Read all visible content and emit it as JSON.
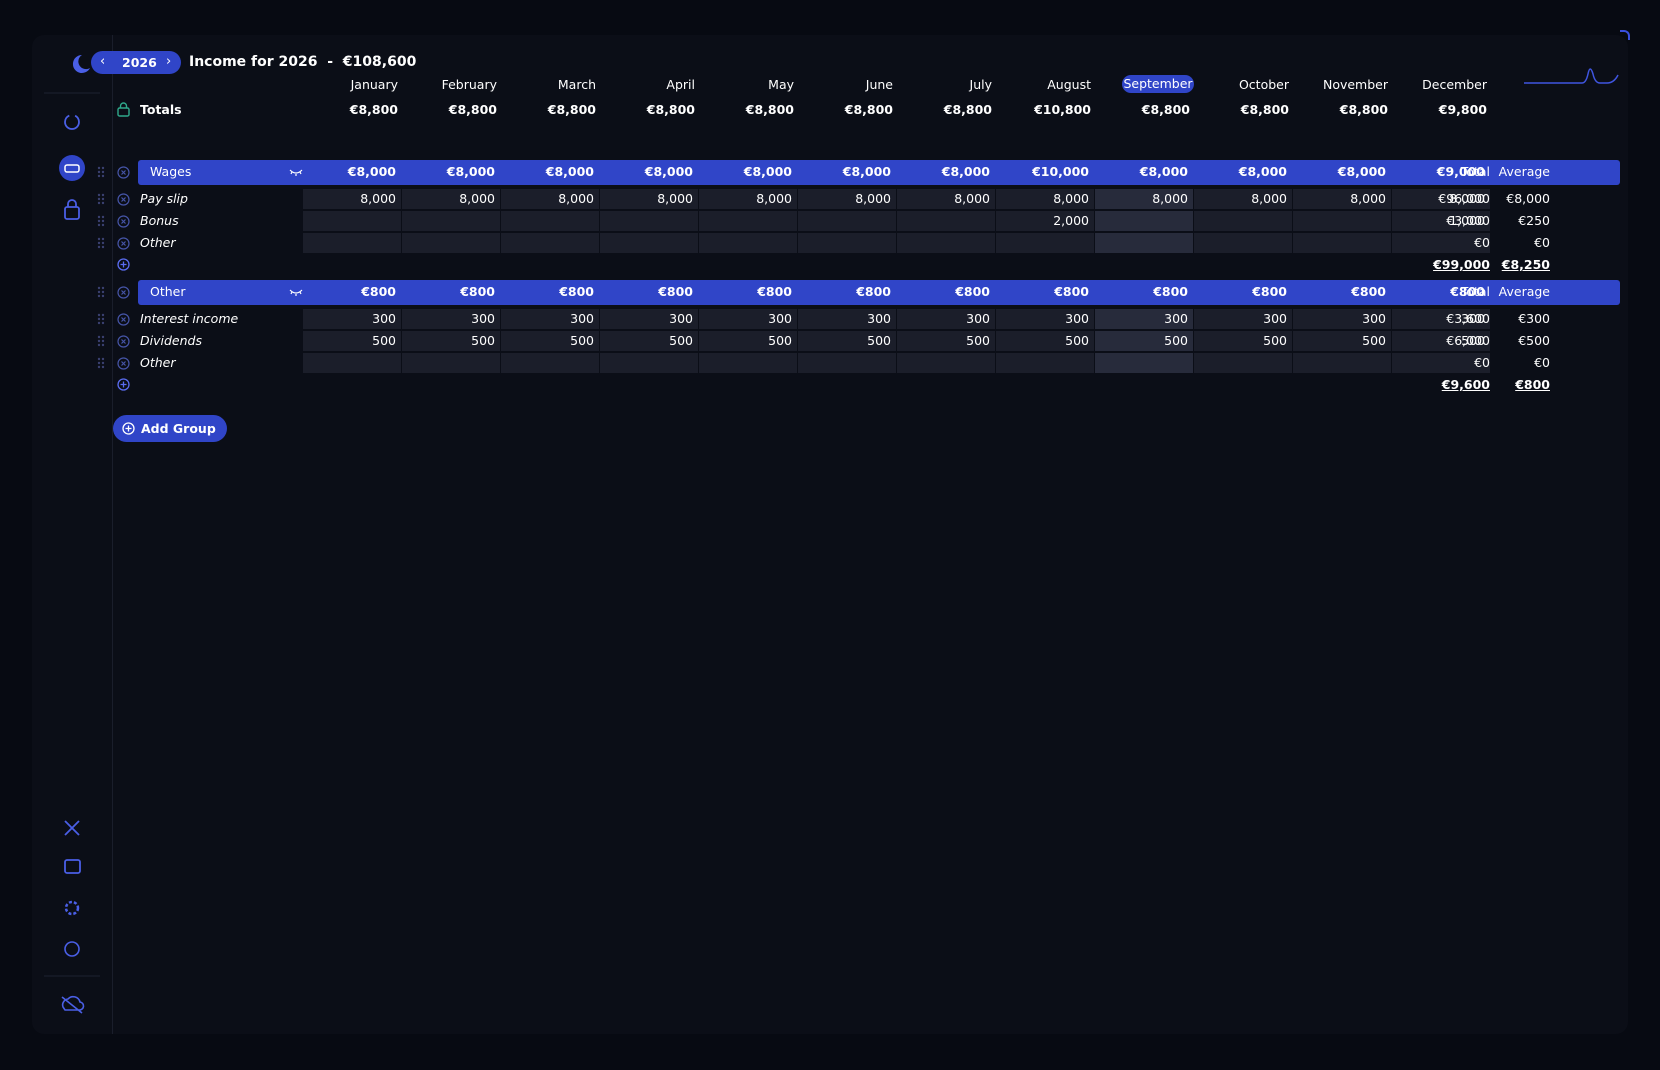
{
  "header": {
    "year": "2026",
    "title": "Income for 2026  -  €108,600"
  },
  "months": [
    "January",
    "February",
    "March",
    "April",
    "May",
    "June",
    "July",
    "August",
    "September",
    "October",
    "November",
    "December"
  ],
  "current_month_index": 8,
  "totals": {
    "label": "Totals",
    "values": [
      "€8,800",
      "€8,800",
      "€8,800",
      "€8,800",
      "€8,800",
      "€8,800",
      "€8,800",
      "€10,800",
      "€8,800",
      "€8,800",
      "€8,800",
      "€9,800"
    ]
  },
  "groups": [
    {
      "name": "Wages",
      "month_totals": [
        "€8,000",
        "€8,000",
        "€8,000",
        "€8,000",
        "€8,000",
        "€8,000",
        "€8,000",
        "€10,000",
        "€8,000",
        "€8,000",
        "€8,000",
        "€9,000"
      ],
      "total_label": "Total",
      "average_label": "Average",
      "rows": [
        {
          "name": "Pay slip",
          "cells": [
            "8,000",
            "8,000",
            "8,000",
            "8,000",
            "8,000",
            "8,000",
            "8,000",
            "8,000",
            "8,000",
            "8,000",
            "8,000",
            "8,000"
          ],
          "total": "€96,000",
          "average": "€8,000"
        },
        {
          "name": "Bonus",
          "cells": [
            null,
            null,
            null,
            null,
            null,
            null,
            null,
            "2,000",
            null,
            null,
            null,
            "1,000"
          ],
          "total": "€3,000",
          "average": "€250"
        },
        {
          "name": "Other",
          "cells": [
            null,
            null,
            null,
            null,
            null,
            null,
            null,
            null,
            null,
            null,
            null,
            null
          ],
          "total": "€0",
          "average": "€0"
        }
      ],
      "sum_total": "€99,000",
      "sum_average": "€8,250"
    },
    {
      "name": "Other",
      "month_totals": [
        "€800",
        "€800",
        "€800",
        "€800",
        "€800",
        "€800",
        "€800",
        "€800",
        "€800",
        "€800",
        "€800",
        "€800"
      ],
      "total_label": "Total",
      "average_label": "Average",
      "rows": [
        {
          "name": "Interest income",
          "cells": [
            "300",
            "300",
            "300",
            "300",
            "300",
            "300",
            "300",
            "300",
            "300",
            "300",
            "300",
            "300"
          ],
          "total": "€3,600",
          "average": "€300"
        },
        {
          "name": "Dividends",
          "cells": [
            "500",
            "500",
            "500",
            "500",
            "500",
            "500",
            "500",
            "500",
            "500",
            "500",
            "500",
            "500"
          ],
          "total": "€6,000",
          "average": "€500"
        },
        {
          "name": "Other",
          "cells": [
            null,
            null,
            null,
            null,
            null,
            null,
            null,
            null,
            null,
            null,
            null,
            null
          ],
          "total": "€0",
          "average": "€0"
        }
      ],
      "sum_total": "€9,600",
      "sum_average": "€800"
    }
  ],
  "add_group": "Add Group"
}
